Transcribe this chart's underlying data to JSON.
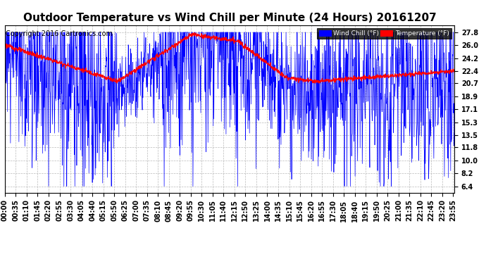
{
  "title": "Outdoor Temperature vs Wind Chill per Minute (24 Hours) 20161207",
  "copyright": "Copyright 2016 Cartronics.com",
  "legend_wind": "Wind Chill (°F)",
  "legend_temp": "Temperature (°F)",
  "wind_chill_color": "#ff0000",
  "temp_color": "#0000ff",
  "legend_wind_bg": "#0000ff",
  "legend_temp_bg": "#ff0000",
  "background_color": "#ffffff",
  "grid_color": "#aaaaaa",
  "yticks": [
    6.4,
    8.2,
    10.0,
    11.8,
    13.5,
    15.3,
    17.1,
    18.9,
    20.7,
    22.4,
    24.2,
    26.0,
    27.8
  ],
  "ylim": [
    5.5,
    28.8
  ],
  "num_minutes": 1440,
  "title_fontsize": 11,
  "tick_fontsize": 7,
  "copyright_fontsize": 7
}
